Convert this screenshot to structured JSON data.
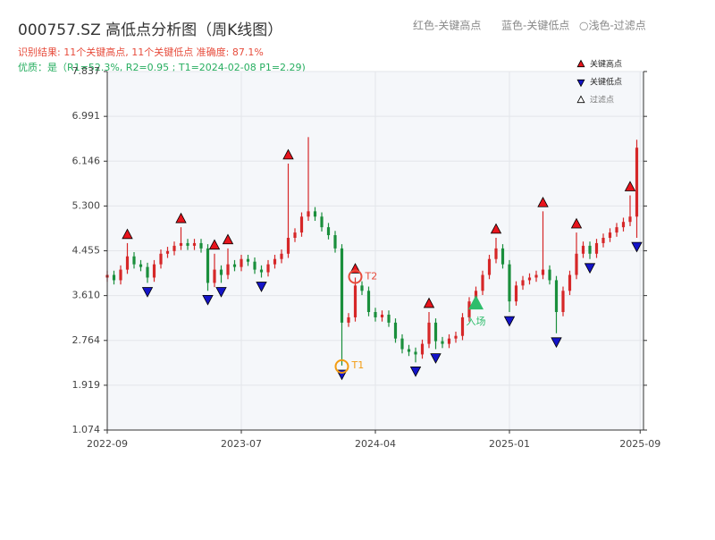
{
  "chart_data": {
    "type": "candlestick",
    "title": "000757.SZ 高低点分析图（周K线图）",
    "subtitle": "识别结果: 11个关键高点, 11个关键低点  准确度: 87.1%",
    "quality_note": "优质：是（R1=52.3%, R2=0.95 ; T1=2024-02-08 P1=2.29)",
    "header_legend": [
      "红色-关键高点",
      "蓝色-关键低点",
      "○浅色-过滤点"
    ],
    "up_color": "#d62728",
    "down_color": "#1a8f3c",
    "x": [
      0,
      2,
      4,
      6,
      8,
      10,
      12,
      14,
      16,
      18,
      20,
      22,
      24,
      26,
      28,
      30,
      32,
      34,
      36,
      38,
      40,
      42,
      44,
      46,
      48,
      50,
      52,
      54,
      56,
      58,
      60,
      62,
      64,
      66,
      68,
      70,
      72,
      74,
      76,
      78,
      80,
      82,
      84,
      86,
      88,
      90,
      92,
      94,
      96,
      98,
      100,
      102,
      104,
      106,
      108,
      110,
      112,
      114,
      116,
      118,
      120,
      122,
      124,
      126,
      128,
      130,
      132,
      134,
      136,
      138,
      140,
      142,
      144,
      146,
      148,
      150,
      152,
      154,
      156,
      158
    ],
    "open": [
      3.95,
      4.0,
      3.9,
      4.1,
      4.35,
      4.2,
      4.15,
      3.95,
      4.2,
      4.4,
      4.45,
      4.55,
      4.6,
      4.55,
      4.6,
      4.5,
      3.85,
      4.1,
      4.0,
      4.2,
      4.15,
      4.3,
      4.25,
      4.1,
      4.05,
      4.2,
      4.3,
      4.4,
      4.7,
      4.8,
      5.1,
      5.2,
      5.1,
      4.9,
      4.75,
      4.5,
      3.1,
      3.2,
      3.8,
      3.7,
      3.3,
      3.2,
      3.25,
      3.1,
      2.8,
      2.6,
      2.55,
      2.5,
      2.7,
      3.1,
      2.75,
      2.7,
      2.8,
      2.85,
      3.2,
      3.5,
      3.7,
      4.0,
      4.3,
      4.5,
      4.2,
      3.5,
      3.8,
      3.9,
      3.95,
      4.0,
      4.1,
      3.9,
      3.3,
      3.7,
      4.0,
      4.4,
      4.55,
      4.4,
      4.6,
      4.7,
      4.8,
      4.9,
      5.0,
      5.1
    ],
    "high": [
      4.08,
      4.08,
      4.18,
      4.6,
      4.43,
      4.28,
      4.23,
      4.28,
      4.48,
      4.53,
      4.63,
      4.9,
      4.68,
      4.68,
      4.68,
      4.58,
      4.4,
      4.18,
      4.5,
      4.28,
      4.38,
      4.38,
      4.33,
      4.18,
      4.28,
      4.38,
      4.48,
      6.1,
      4.88,
      5.18,
      6.6,
      5.28,
      5.18,
      4.98,
      4.83,
      4.58,
      3.28,
      3.95,
      3.88,
      3.78,
      3.38,
      3.33,
      3.33,
      3.18,
      2.88,
      2.68,
      2.63,
      2.78,
      3.3,
      3.18,
      2.83,
      2.88,
      2.93,
      3.28,
      3.58,
      3.78,
      4.08,
      4.38,
      4.7,
      4.58,
      4.28,
      3.88,
      3.98,
      4.03,
      4.08,
      5.2,
      4.18,
      3.98,
      3.78,
      4.08,
      4.8,
      4.63,
      4.63,
      4.68,
      4.78,
      4.88,
      4.98,
      5.08,
      5.5,
      6.55
    ],
    "low": [
      3.87,
      3.82,
      3.82,
      4.02,
      4.12,
      4.07,
      3.85,
      3.87,
      4.12,
      4.32,
      4.37,
      4.47,
      4.47,
      4.47,
      4.42,
      3.7,
      3.77,
      3.85,
      3.92,
      4.07,
      4.07,
      4.17,
      4.02,
      3.95,
      3.97,
      4.12,
      4.22,
      4.32,
      4.62,
      4.72,
      5.02,
      5.02,
      4.82,
      4.67,
      4.42,
      2.29,
      3.02,
      3.12,
      3.62,
      3.22,
      3.12,
      3.12,
      3.02,
      2.72,
      2.52,
      2.47,
      2.35,
      2.42,
      2.62,
      2.6,
      2.62,
      2.62,
      2.72,
      2.77,
      3.12,
      3.42,
      3.62,
      3.92,
      4.22,
      4.12,
      3.3,
      3.42,
      3.72,
      3.82,
      3.87,
      3.92,
      3.82,
      2.9,
      3.22,
      3.62,
      3.92,
      4.32,
      4.3,
      4.32,
      4.52,
      4.62,
      4.72,
      4.82,
      4.92,
      4.7
    ],
    "close": [
      4.0,
      3.9,
      4.1,
      4.35,
      4.2,
      4.15,
      3.95,
      4.2,
      4.4,
      4.45,
      4.55,
      4.6,
      4.55,
      4.6,
      4.5,
      3.85,
      4.1,
      4.0,
      4.2,
      4.15,
      4.3,
      4.25,
      4.1,
      4.05,
      4.2,
      4.3,
      4.4,
      4.7,
      4.8,
      5.1,
      5.2,
      5.1,
      4.9,
      4.75,
      4.5,
      3.1,
      3.2,
      3.8,
      3.7,
      3.3,
      3.2,
      3.25,
      3.1,
      2.8,
      2.6,
      2.55,
      2.5,
      2.7,
      3.1,
      2.75,
      2.7,
      2.8,
      2.85,
      3.2,
      3.5,
      3.7,
      4.0,
      4.3,
      4.5,
      4.2,
      3.5,
      3.8,
      3.9,
      3.95,
      4.0,
      4.1,
      3.9,
      3.3,
      3.7,
      4.0,
      4.4,
      4.55,
      4.4,
      4.6,
      4.7,
      4.8,
      4.9,
      5.0,
      5.1,
      6.4
    ],
    "series": [
      {
        "name": "关键高点",
        "color": "#e8141c",
        "marker": "up",
        "x": [
          6,
          22,
          32,
          36,
          54,
          74,
          96,
          116,
          130,
          140,
          156
        ],
        "values": [
          4.6,
          4.9,
          4.4,
          4.5,
          6.1,
          3.95,
          3.3,
          4.7,
          5.2,
          4.8,
          5.5
        ]
      },
      {
        "name": "关键低点",
        "color": "#1414c8",
        "marker": "down",
        "x": [
          12,
          30,
          34,
          46,
          70,
          92,
          98,
          120,
          134,
          144,
          158
        ],
        "values": [
          3.85,
          3.7,
          3.85,
          3.95,
          2.29,
          2.35,
          2.6,
          3.3,
          2.9,
          4.3,
          4.7
        ]
      },
      {
        "name": "过滤点",
        "color": "#ffffff",
        "marker": "up",
        "x": [],
        "values": []
      }
    ],
    "annotations": [
      {
        "text": "T1",
        "x": 70,
        "value": 2.29,
        "color": "#f39c12"
      },
      {
        "text": "T2",
        "x": 74,
        "value": 3.95,
        "color": "#e74c3c"
      }
    ],
    "entry": {
      "text": "入场",
      "x": 110,
      "value": 3.45,
      "color": "#2ebd6b"
    },
    "xlim": [
      0,
      160
    ],
    "xticks": [
      {
        "value": 0,
        "label": "2022-09"
      },
      {
        "value": 40,
        "label": "2023-07"
      },
      {
        "value": 80,
        "label": "2024-04"
      },
      {
        "value": 120,
        "label": "2025-01"
      },
      {
        "value": 159,
        "label": "2025-09"
      }
    ],
    "ylim": [
      1.074,
      7.837
    ],
    "yticks": [
      1.074,
      {
        "value": 1.919,
        "label": "1.919"
      },
      2.764,
      {
        "value": 3.61,
        "label": "3.610"
      },
      4.455,
      {
        "value": 5.3,
        "label": "5.300"
      },
      6.146,
      6.991,
      7.837
    ],
    "grid": true
  }
}
